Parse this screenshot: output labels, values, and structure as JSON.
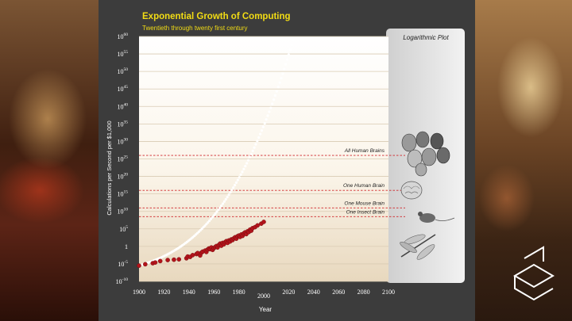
{
  "chart_data": {
    "type": "scatter",
    "title": "Exponential Growth of Computing",
    "subtitle": "Twentieth through twenty first century",
    "xlabel": "Year",
    "ylabel": "Calculations per Second per $1,000",
    "xlim": [
      1900,
      2100
    ],
    "ylim": [
      -10,
      60
    ],
    "y_scale": "log",
    "x_ticks": [
      "1900",
      "1920",
      "1940",
      "1960",
      "1980",
      "2000",
      "2020",
      "2040",
      "2060",
      "2080",
      "2100"
    ],
    "y_ticks": [
      {
        "exp": -10,
        "base": "10",
        "sup": "-10"
      },
      {
        "exp": -5,
        "base": "10",
        "sup": "-5"
      },
      {
        "exp": 0,
        "base": "1",
        "sup": ""
      },
      {
        "exp": 5,
        "base": "10",
        "sup": "5"
      },
      {
        "exp": 10,
        "base": "10",
        "sup": "10"
      },
      {
        "exp": 15,
        "base": "10",
        "sup": "15"
      },
      {
        "exp": 20,
        "base": "10",
        "sup": "20"
      },
      {
        "exp": 25,
        "base": "10",
        "sup": "25"
      },
      {
        "exp": 30,
        "base": "10",
        "sup": "30"
      },
      {
        "exp": 35,
        "base": "10",
        "sup": "35"
      },
      {
        "exp": 40,
        "base": "10",
        "sup": "40"
      },
      {
        "exp": 45,
        "base": "10",
        "sup": "45"
      },
      {
        "exp": 50,
        "base": "10",
        "sup": "50"
      },
      {
        "exp": 55,
        "base": "10",
        "sup": "55"
      },
      {
        "exp": 60,
        "base": "10",
        "sup": "60"
      }
    ],
    "series": [
      {
        "color": "#b3141b",
        "points": [
          [
            1900,
            -5.5
          ],
          [
            1905,
            -5.1
          ],
          [
            1911,
            -4.8
          ],
          [
            1913,
            -4.6
          ],
          [
            1917,
            -4.2
          ],
          [
            1923,
            -3.9
          ],
          [
            1928,
            -3.8
          ],
          [
            1932,
            -3.7
          ],
          [
            1938,
            -3.4
          ],
          [
            1939,
            -2.9
          ],
          [
            1941,
            -3.0
          ],
          [
            1943,
            -2.5
          ],
          [
            1946,
            -2.2
          ],
          [
            1947,
            -1.9
          ],
          [
            1949,
            -2.6
          ],
          [
            1950,
            -1.8
          ],
          [
            1951,
            -1.5
          ],
          [
            1953,
            -1.2
          ],
          [
            1954,
            -1.6
          ],
          [
            1955,
            -0.9
          ],
          [
            1956,
            -0.6
          ],
          [
            1957,
            -0.8
          ],
          [
            1958,
            -0.3
          ],
          [
            1959,
            -1.0
          ],
          [
            1960,
            -0.5
          ],
          [
            1961,
            -0.2
          ],
          [
            1962,
            0.1
          ],
          [
            1963,
            -0.3
          ],
          [
            1964,
            0.4
          ],
          [
            1965,
            0.8
          ],
          [
            1966,
            0.2
          ],
          [
            1967,
            1.0
          ],
          [
            1968,
            0.6
          ],
          [
            1969,
            1.2
          ],
          [
            1970,
            1.5
          ],
          [
            1971,
            1.0
          ],
          [
            1972,
            1.7
          ],
          [
            1973,
            1.4
          ],
          [
            1974,
            2.0
          ],
          [
            1975,
            1.8
          ],
          [
            1976,
            2.3
          ],
          [
            1977,
            2.6
          ],
          [
            1978,
            2.2
          ],
          [
            1979,
            2.9
          ],
          [
            1980,
            3.1
          ],
          [
            1981,
            2.7
          ],
          [
            1982,
            3.4
          ],
          [
            1983,
            3.0
          ],
          [
            1984,
            3.7
          ],
          [
            1985,
            4.0
          ],
          [
            1986,
            3.5
          ],
          [
            1987,
            4.3
          ],
          [
            1988,
            4.1
          ],
          [
            1989,
            4.8
          ],
          [
            1990,
            4.5
          ],
          [
            1991,
            5.2
          ],
          [
            1993,
            5.5
          ],
          [
            1995,
            6.0
          ],
          [
            1998,
            6.5
          ],
          [
            2000,
            7.0
          ]
        ]
      }
    ],
    "projection": {
      "from_year": 1900,
      "to_year": 2090,
      "color": "#ffffff"
    },
    "reference_lines": [
      {
        "label": "All Human Brains",
        "y_exp": 26,
        "color": "#d0262b",
        "icon": "human-faces-icon"
      },
      {
        "label": "One Human Brain",
        "y_exp": 16,
        "color": "#d0262b",
        "icon": "human-brain-icon"
      },
      {
        "label": "One Mouse Brain",
        "y_exp": 11,
        "color": "#d0262b",
        "icon": "mouse-icon"
      },
      {
        "label": "One Insect Brain",
        "y_exp": 8.5,
        "color": "#d0262b",
        "icon": "dragonfly-icon"
      }
    ],
    "side_panel_title": "Logarithmic Plot",
    "grid": true
  },
  "colors": {
    "title": "#f2dc14",
    "panel": "#3c3c3c",
    "axis_text": "#ffffff"
  }
}
